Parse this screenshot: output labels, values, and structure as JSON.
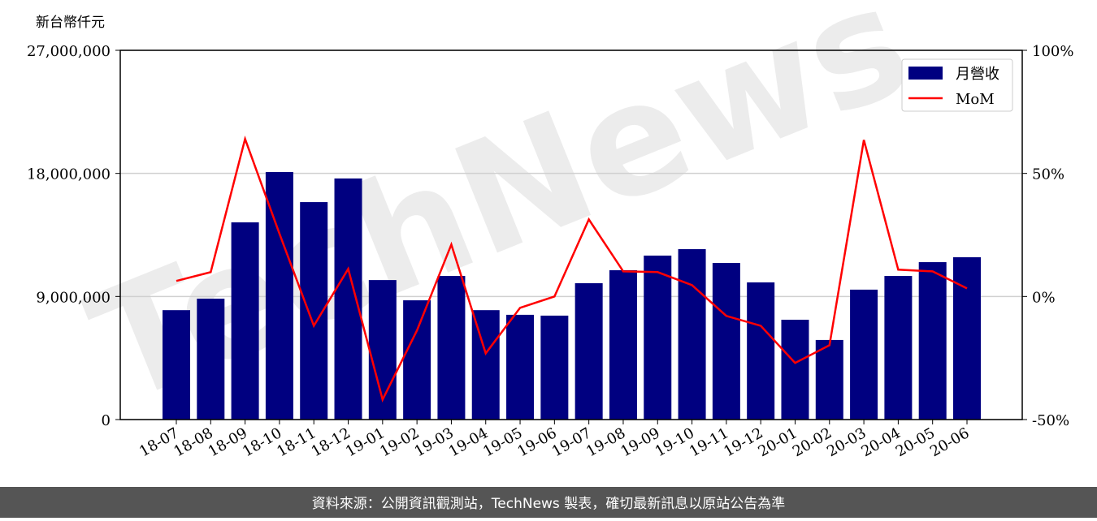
{
  "chart_data": {
    "type": "bar-line",
    "y_label": "新台幣仟元",
    "watermark": "TechNews",
    "footer": "資料來源：公開資訊觀測站，TechNews 製表，確切最新訊息以原站公告為準",
    "categories": [
      "18-07",
      "18-08",
      "18-09",
      "18-10",
      "18-11",
      "18-12",
      "19-01",
      "19-02",
      "19-03",
      "19-04",
      "19-05",
      "19-06",
      "19-07",
      "19-08",
      "19-09",
      "19-10",
      "19-11",
      "19-12",
      "20-01",
      "20-02",
      "20-03",
      "20-04",
      "20-05",
      "20-06"
    ],
    "series": [
      {
        "name": "月營收",
        "type": "bar",
        "color": "#000080",
        "values": [
          8000000,
          8840000,
          14420000,
          18100000,
          15900000,
          17630000,
          10200000,
          8720000,
          10500000,
          8000000,
          7660000,
          7600000,
          9970000,
          10920000,
          11990000,
          12460000,
          11450000,
          10030000,
          7300000,
          5820000,
          9500000,
          10500000,
          11510000,
          11870000
        ]
      },
      {
        "name": "MoM",
        "type": "line",
        "axis": "y2",
        "color": "#ff0000",
        "values": [
          6.3,
          9.9,
          64,
          25.5,
          -11.9,
          11.2,
          -41.9,
          -13.8,
          21.1,
          -23.1,
          -4.6,
          0,
          31.3,
          10.2,
          9.9,
          4.6,
          -7.9,
          -11.9,
          -27,
          -19.8,
          63.6,
          10.9,
          10.2,
          3.3
        ]
      }
    ],
    "ylim": [
      0,
      27000000
    ],
    "yticks": [
      0,
      {
        "value": 9000000,
        "label": "9,000,000"
      },
      {
        "value": 18000000,
        "label": "18,000,000"
      },
      {
        "value": 27000000,
        "label": "27,000,000"
      }
    ],
    "y2lim": [
      -50,
      100
    ],
    "y2ticks": [
      {
        "value": -50,
        "label": "-50%"
      },
      {
        "value": 0,
        "label": "0%"
      },
      {
        "value": 50,
        "label": "50%"
      },
      {
        "value": 100,
        "label": "100%"
      }
    ],
    "grid": true,
    "legend": "upper right"
  }
}
